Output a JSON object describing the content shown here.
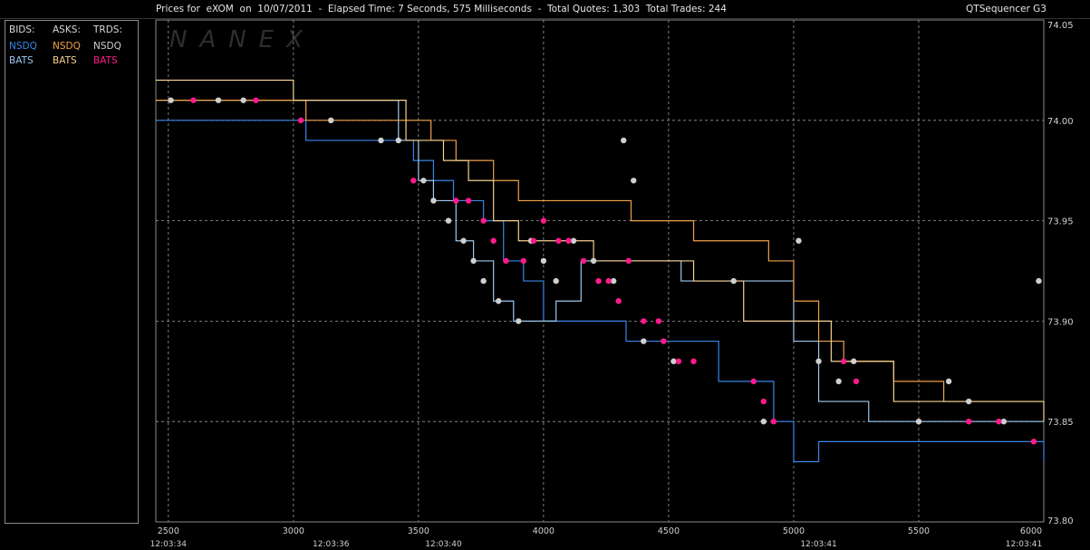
{
  "header": {
    "title": "Prices for  eXOM  on  10/07/2011  -  Elapsed Time: 7 Seconds, 575 Milliseconds  -  Total Quotes: 1,303  Total Trades: 244",
    "app_name": "QTSequencer G3"
  },
  "watermark": "NANEX",
  "legend": {
    "bids_label": "BIDS:",
    "asks_label": "ASKS:",
    "trds_label": "TRDS:",
    "bids": [
      "NSDQ",
      "BATS"
    ],
    "asks": [
      "NSDQ",
      "BATS"
    ],
    "trds": [
      "NSDQ",
      "BATS"
    ]
  },
  "colors": {
    "background": "#000000",
    "grid": "#9a9a9a",
    "bid_nsdq": "#3a86e6",
    "bid_bats": "#9cc8f0",
    "ask_nsdq": "#f0a048",
    "ask_bats": "#f5d090",
    "trd_nsdq": "#cfcfcf",
    "trd_bats": "#ff1a8c"
  },
  "chart_data": {
    "type": "line",
    "xlim": [
      2450,
      6000
    ],
    "ylim": [
      73.8,
      74.05
    ],
    "x_ticks": [
      2500,
      3000,
      3500,
      4000,
      4500,
      5000,
      5500,
      6000
    ],
    "y_ticks": [
      73.8,
      73.85,
      73.9,
      73.95,
      74.0,
      74.05
    ],
    "y_tick_labels": [
      "73.80",
      "73.85",
      "73.90",
      "73.95",
      "74.00",
      "74.05"
    ],
    "time_labels": [
      {
        "x": 2500,
        "label": "12:03:34"
      },
      {
        "x": 3150,
        "label": "12:03:36"
      },
      {
        "x": 3600,
        "label": "12:03:40"
      },
      {
        "x": 5100,
        "label": "12:03:41"
      },
      {
        "x": 6000,
        "label": "12:03:41"
      }
    ],
    "series": [
      {
        "name": "NSDQ",
        "side": "bid",
        "x": [
          2450,
          2950,
          3050,
          3400,
          3480,
          3560,
          3640,
          3760,
          3840,
          3920,
          4000,
          4150,
          4330,
          4450,
          4700,
          4920,
          5000,
          5100,
          5250,
          5600,
          6000
        ],
        "y": [
          74.0,
          74.0,
          73.99,
          73.99,
          73.98,
          73.97,
          73.96,
          73.95,
          73.93,
          73.92,
          73.9,
          73.9,
          73.89,
          73.89,
          73.87,
          73.85,
          73.83,
          73.84,
          73.84,
          73.84,
          73.83
        ]
      },
      {
        "name": "BATS",
        "side": "bid",
        "x": [
          2450,
          3000,
          3420,
          3500,
          3560,
          3650,
          3720,
          3800,
          3880,
          3950,
          4050,
          4150,
          4400,
          4550,
          4800,
          5000,
          5100,
          5300,
          5650,
          6000
        ],
        "y": [
          74.01,
          74.01,
          73.99,
          73.97,
          73.96,
          73.94,
          73.93,
          73.91,
          73.9,
          73.9,
          73.91,
          73.93,
          73.93,
          73.92,
          73.92,
          73.89,
          73.86,
          73.85,
          73.85,
          73.85
        ]
      },
      {
        "name": "NSDQ",
        "side": "ask",
        "x": [
          2450,
          3050,
          3450,
          3550,
          3650,
          3740,
          3800,
          3900,
          4000,
          4300,
          4350,
          4500,
          4600,
          4800,
          4900,
          5000,
          5100,
          5200,
          5400,
          5600,
          5800,
          6000
        ],
        "y": [
          74.01,
          74.0,
          74.0,
          73.99,
          73.98,
          73.98,
          73.97,
          73.96,
          73.96,
          73.96,
          73.95,
          73.95,
          73.94,
          73.94,
          73.93,
          73.91,
          73.89,
          73.88,
          73.87,
          73.86,
          73.86,
          73.86
        ]
      },
      {
        "name": "BATS",
        "side": "ask",
        "x": [
          2450,
          3000,
          3450,
          3600,
          3700,
          3800,
          3900,
          4000,
          4200,
          4400,
          4600,
          4800,
          5000,
          5150,
          5400,
          5700,
          6000
        ],
        "y": [
          74.02,
          74.01,
          73.99,
          73.98,
          73.97,
          73.95,
          73.94,
          73.94,
          73.93,
          73.93,
          73.92,
          73.9,
          73.9,
          73.88,
          73.86,
          73.86,
          73.85
        ]
      },
      {
        "name": "NSDQ",
        "side": "trade",
        "x": [
          2510,
          2700,
          2800,
          3150,
          3350,
          3420,
          3520,
          3560,
          3620,
          3680,
          3720,
          3760,
          3820,
          3900,
          3950,
          4000,
          4050,
          4120,
          4200,
          4280,
          4320,
          4360,
          4400,
          4520,
          4760,
          4880,
          5020,
          5100,
          5180,
          5240,
          5500,
          5620,
          5700,
          5840,
          5980
        ],
        "y": [
          74.01,
          74.01,
          74.01,
          74.0,
          73.99,
          73.99,
          73.97,
          73.96,
          73.95,
          73.94,
          73.93,
          73.92,
          73.91,
          73.9,
          73.94,
          73.93,
          73.92,
          73.94,
          73.93,
          73.92,
          73.99,
          73.97,
          73.89,
          73.88,
          73.92,
          73.85,
          73.94,
          73.88,
          73.87,
          73.88,
          73.85,
          73.87,
          73.86,
          73.85,
          73.92
        ]
      },
      {
        "name": "BATS",
        "side": "trade",
        "x": [
          2600,
          2850,
          3030,
          3480,
          3650,
          3700,
          3760,
          3800,
          3850,
          3920,
          3960,
          4000,
          4060,
          4100,
          4160,
          4220,
          4260,
          4300,
          4340,
          4400,
          4460,
          4480,
          4540,
          4600,
          4840,
          4880,
          4920,
          5200,
          5250,
          5700,
          5820,
          5960
        ],
        "y": [
          74.01,
          74.01,
          74.0,
          73.97,
          73.96,
          73.96,
          73.95,
          73.94,
          73.93,
          73.93,
          73.94,
          73.95,
          73.94,
          73.94,
          73.93,
          73.92,
          73.92,
          73.91,
          73.93,
          73.9,
          73.9,
          73.89,
          73.88,
          73.88,
          73.87,
          73.86,
          73.85,
          73.88,
          73.87,
          73.85,
          73.85,
          73.84
        ]
      }
    ]
  }
}
